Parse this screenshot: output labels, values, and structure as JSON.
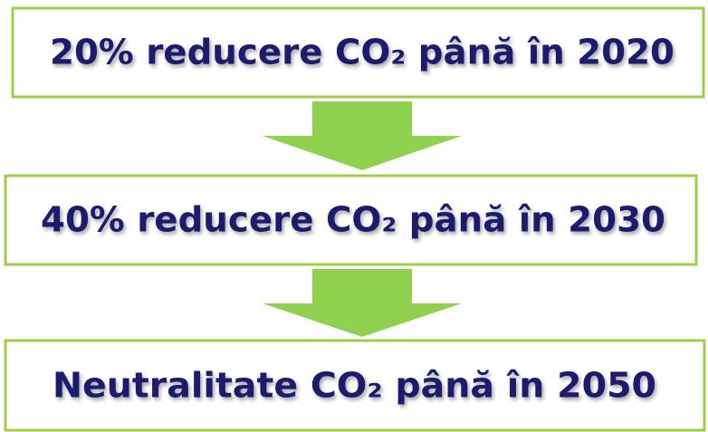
{
  "steps": [
    {
      "label": "20% reducere CO₂ până în 2020"
    },
    {
      "label": "40% reducere CO₂ până în 2030"
    },
    {
      "label": "Neutralitate CO₂ până în 2050"
    }
  ]
}
